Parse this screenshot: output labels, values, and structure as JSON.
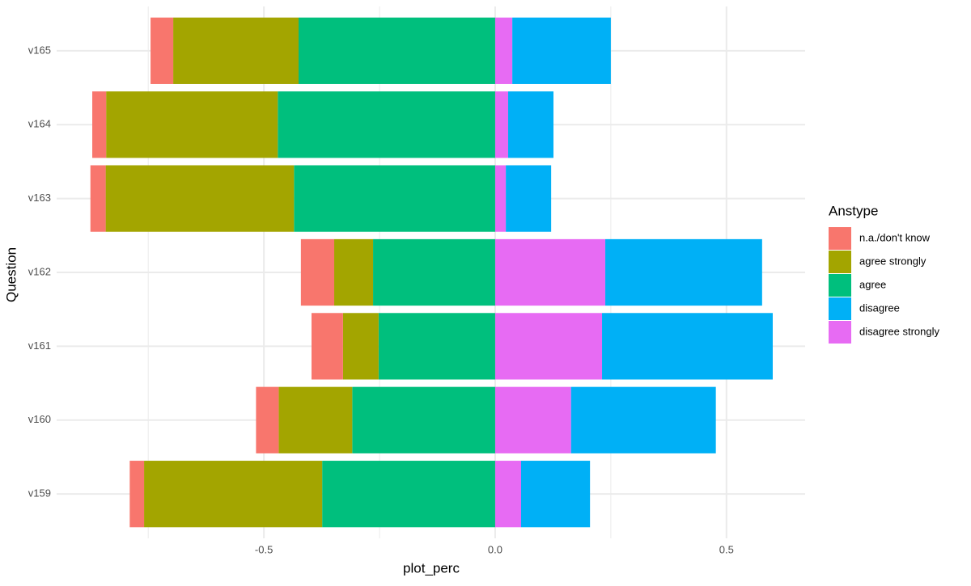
{
  "chart_data": {
    "type": "diverging-bar",
    "x_label": "plot_perc",
    "y_label": "Question",
    "legend_title": "Anstype",
    "categories": [
      "v159",
      "v160",
      "v161",
      "v162",
      "v163",
      "v164",
      "v165"
    ],
    "series": [
      {
        "name": "n.a./don't know",
        "color": "#F8766D",
        "values": [
          -0.031,
          -0.049,
          -0.068,
          -0.072,
          -0.033,
          -0.03,
          -0.049
        ]
      },
      {
        "name": "agree strongly",
        "color": "#A3A500",
        "values": [
          -0.385,
          -0.159,
          -0.077,
          -0.084,
          -0.407,
          -0.371,
          -0.271
        ]
      },
      {
        "name": "agree",
        "color": "#00BF7D",
        "values": [
          -0.374,
          -0.309,
          -0.252,
          -0.264,
          -0.435,
          -0.47,
          -0.425
        ]
      },
      {
        "name": "disagree",
        "color": "#00B0F6",
        "values": [
          0.149,
          0.313,
          0.369,
          0.339,
          0.098,
          0.098,
          0.213
        ]
      },
      {
        "name": "disagree strongly",
        "color": "#E76BF3",
        "values": [
          0.056,
          0.164,
          0.231,
          0.238,
          0.023,
          0.028,
          0.037
        ]
      }
    ],
    "xlim": [
      -0.948,
      0.67
    ],
    "xticks": [
      -0.5,
      {
        "value": 0,
        "label": "0.0"
      },
      0.5
    ],
    "xminor": [
      -0.75,
      -0.25,
      0.25
    ],
    "grid": true,
    "legend_position": "right"
  }
}
